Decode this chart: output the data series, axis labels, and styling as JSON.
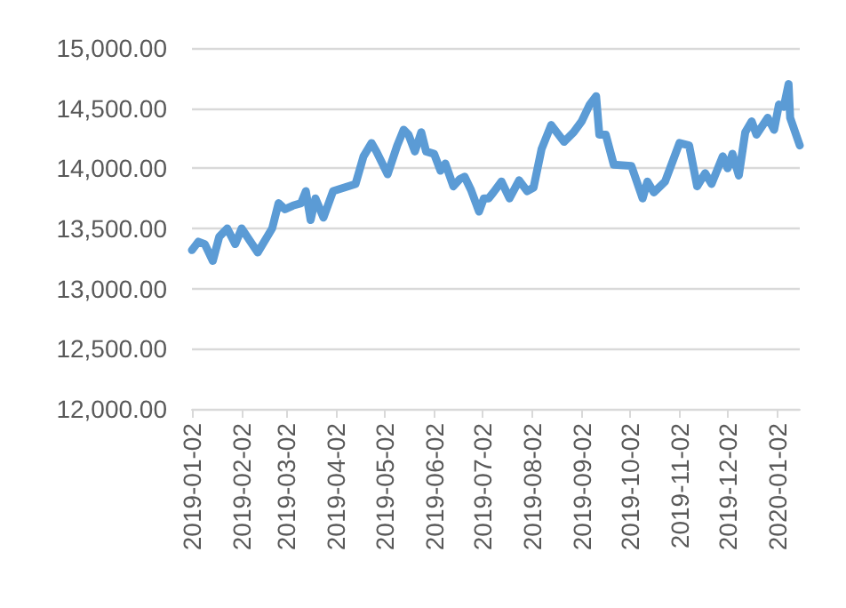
{
  "chart_data": {
    "type": "line",
    "color": "#5b9bd5",
    "x": [
      "2019-01-02",
      "2019-01-06",
      "2019-01-10",
      "2019-01-15",
      "2019-01-19",
      "2019-01-24",
      "2019-01-29",
      "2019-02-02",
      "2019-02-12",
      "2019-02-21",
      "2019-02-25",
      "2019-03-01",
      "2019-03-06",
      "2019-03-11",
      "2019-03-14",
      "2019-03-17",
      "2019-03-20",
      "2019-03-25",
      "2019-03-31",
      "2019-04-14",
      "2019-04-19",
      "2019-04-24",
      "2019-04-27",
      "2019-05-04",
      "2019-05-10",
      "2019-05-14",
      "2019-05-17",
      "2019-05-21",
      "2019-05-25",
      "2019-05-28",
      "2019-06-02",
      "2019-06-06",
      "2019-06-09",
      "2019-06-14",
      "2019-06-18",
      "2019-06-21",
      "2019-06-25",
      "2019-06-30",
      "2019-07-03",
      "2019-07-06",
      "2019-07-09",
      "2019-07-14",
      "2019-07-19",
      "2019-07-25",
      "2019-07-30",
      "2019-08-03",
      "2019-08-08",
      "2019-08-14",
      "2019-08-22",
      "2019-08-28",
      "2019-09-02",
      "2019-09-07",
      "2019-09-11",
      "2019-09-13",
      "2019-09-17",
      "2019-09-22",
      "2019-10-03",
      "2019-10-10",
      "2019-10-13",
      "2019-10-17",
      "2019-10-24",
      "2019-11-02",
      "2019-11-08",
      "2019-11-13",
      "2019-11-18",
      "2019-11-22",
      "2019-11-29",
      "2019-12-02",
      "2019-12-05",
      "2019-12-09",
      "2019-12-13",
      "2019-12-17",
      "2019-12-20",
      "2019-12-27",
      "2019-12-31",
      "2020-01-03",
      "2020-01-06",
      "2020-01-09",
      "2020-01-10",
      "2020-01-16"
    ],
    "values": [
      13320,
      13390,
      13370,
      13230,
      13430,
      13500,
      13370,
      13500,
      13300,
      13500,
      13710,
      13660,
      13690,
      13710,
      13810,
      13570,
      13750,
      13590,
      13810,
      13870,
      14100,
      14210,
      14140,
      13950,
      14190,
      14320,
      14280,
      14140,
      14300,
      14140,
      14120,
      13980,
      14040,
      13850,
      13910,
      13930,
      13820,
      13640,
      13750,
      13750,
      13800,
      13890,
      13750,
      13900,
      13810,
      13840,
      14160,
      14360,
      14220,
      14300,
      14390,
      14530,
      14600,
      14280,
      14280,
      14030,
      14020,
      13750,
      13890,
      13800,
      13890,
      14210,
      14190,
      13850,
      13960,
      13870,
      14100,
      14000,
      14120,
      13940,
      14300,
      14390,
      14280,
      14420,
      14320,
      14530,
      14510,
      14700,
      14420,
      14190
    ],
    "xlim": [
      "2019-01-02",
      "2020-01-16"
    ],
    "xticks": [
      "2019-01-02",
      "2019-02-02",
      "2019-03-02",
      "2019-04-02",
      "2019-05-02",
      "2019-06-02",
      "2019-07-02",
      "2019-08-02",
      "2019-09-02",
      "2019-10-02",
      "2019-11-02",
      "2019-12-02",
      "2020-01-02"
    ],
    "ylim": [
      12000,
      15000
    ],
    "yticks": [
      {
        "value": 12000,
        "label": "12,000.00"
      },
      {
        "value": 12500,
        "label": "12,500.00"
      },
      {
        "value": 13000,
        "label": "13,000.00"
      },
      {
        "value": 13500,
        "label": "13,500.00"
      },
      {
        "value": 14000,
        "label": "14,000.00"
      },
      {
        "value": 14500,
        "label": "14,500.00"
      },
      {
        "value": 15000,
        "label": "15,000.00"
      }
    ],
    "grid": "y",
    "marker": "none",
    "line_style": "solid"
  }
}
